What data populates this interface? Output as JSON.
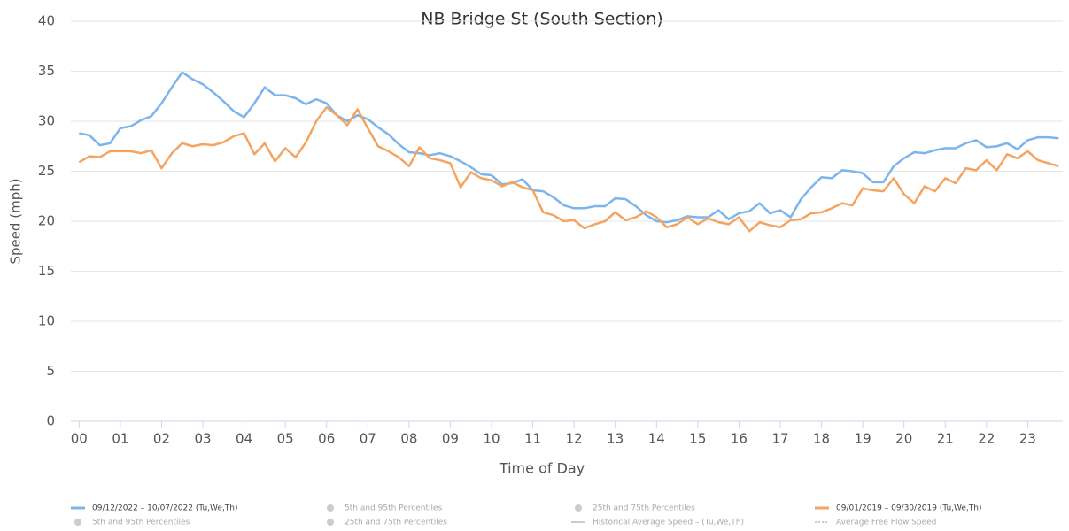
{
  "chart_data": {
    "type": "line",
    "title": "NB Bridge St (South Section)",
    "xlabel": "Time of Day",
    "ylabel": "Speed (mph)",
    "x": [
      0,
      0.25,
      0.5,
      0.75,
      1,
      1.25,
      1.5,
      1.75,
      2,
      2.25,
      2.5,
      2.75,
      3,
      3.25,
      3.5,
      3.75,
      4,
      4.25,
      4.5,
      4.75,
      5,
      5.25,
      5.5,
      5.75,
      6,
      6.25,
      6.5,
      6.75,
      7,
      7.25,
      7.5,
      7.75,
      8,
      8.25,
      8.5,
      8.75,
      9,
      9.25,
      9.5,
      9.75,
      10,
      10.25,
      10.5,
      10.75,
      11,
      11.25,
      11.5,
      11.75,
      12,
      12.25,
      12.5,
      12.75,
      13,
      13.25,
      13.5,
      13.75,
      14,
      14.25,
      14.5,
      14.75,
      15,
      15.25,
      15.5,
      15.75,
      16,
      16.25,
      16.5,
      16.75,
      17,
      17.25,
      17.5,
      17.75,
      18,
      18.25,
      18.5,
      18.75,
      19,
      19.25,
      19.5,
      19.75,
      20,
      20.25,
      20.5,
      20.75,
      21,
      21.25,
      21.5,
      21.75,
      22,
      22.25,
      22.5,
      22.75,
      23,
      23.25,
      23.5,
      23.75
    ],
    "series": [
      {
        "name": "09/12/2022 – 10/07/2022 (Tu,We,Th)",
        "color": "#7cb5ec",
        "values": [
          28.8,
          28.6,
          27.6,
          27.8,
          29.3,
          29.5,
          30.1,
          30.5,
          31.8,
          33.4,
          34.9,
          34.2,
          33.7,
          32.9,
          32.0,
          31.0,
          30.4,
          31.8,
          33.4,
          32.6,
          32.6,
          32.3,
          31.7,
          32.2,
          31.8,
          30.6,
          30.0,
          30.6,
          30.2,
          29.4,
          28.7,
          27.7,
          26.9,
          26.8,
          26.6,
          26.8,
          26.5,
          26.0,
          25.4,
          24.7,
          24.6,
          23.7,
          23.8,
          24.2,
          23.1,
          23.0,
          22.4,
          21.6,
          21.3,
          21.3,
          21.5,
          21.5,
          22.3,
          22.2,
          21.5,
          20.6,
          20.0,
          19.9,
          20.1,
          20.5,
          20.4,
          20.4,
          21.1,
          20.2,
          20.8,
          21.0,
          21.8,
          20.8,
          21.1,
          20.4,
          22.2,
          23.4,
          24.4,
          24.3,
          25.1,
          25.0,
          24.8,
          23.9,
          23.9,
          25.5,
          26.3,
          26.9,
          26.8,
          27.1,
          27.3,
          27.3,
          27.8,
          28.1,
          27.4,
          27.5,
          27.8,
          27.2,
          28.1,
          28.4,
          28.4,
          28.3
        ]
      },
      {
        "name": "09/01/2019 – 09/30/2019 (Tu,We,Th)",
        "color": "#f4a460",
        "values": [
          25.9,
          26.5,
          26.4,
          27.0,
          27.0,
          27.0,
          26.8,
          27.1,
          25.3,
          26.8,
          27.8,
          27.5,
          27.7,
          27.6,
          27.9,
          28.5,
          28.8,
          26.7,
          27.8,
          26.0,
          27.3,
          26.4,
          27.9,
          30.0,
          31.4,
          30.6,
          29.6,
          31.2,
          29.3,
          27.5,
          27.0,
          26.4,
          25.5,
          27.4,
          26.3,
          26.1,
          25.8,
          23.4,
          24.9,
          24.3,
          24.1,
          23.5,
          23.9,
          23.4,
          23.1,
          20.9,
          20.6,
          20.0,
          20.1,
          19.3,
          19.7,
          20.0,
          20.9,
          20.1,
          20.4,
          21.0,
          20.4,
          19.4,
          19.7,
          20.4,
          19.7,
          20.3,
          19.9,
          19.7,
          20.4,
          19.0,
          19.9,
          19.6,
          19.4,
          20.1,
          20.2,
          20.8,
          20.9,
          21.3,
          21.8,
          21.6,
          23.3,
          23.1,
          23.0,
          24.3,
          22.7,
          21.8,
          23.5,
          23.0,
          24.3,
          23.8,
          25.3,
          25.1,
          26.1,
          25.1,
          26.7,
          26.3,
          27.0,
          26.1,
          25.8,
          25.5
        ]
      }
    ],
    "legend_hidden": [
      {
        "name": "5th and 95th Percentiles",
        "symbol": "dot"
      },
      {
        "name": "25th and 75th Percentiles",
        "symbol": "dot"
      },
      {
        "name": "5th and 95th Percentiles",
        "symbol": "dot"
      },
      {
        "name": "25th and 75th Percentiles",
        "symbol": "dot"
      },
      {
        "name": "Historical Average Speed – (Tu,We,Th)",
        "symbol": "line"
      },
      {
        "name": "Average Free Flow Speed",
        "symbol": "dotted"
      }
    ],
    "xlim": [
      -0.2,
      23.85
    ],
    "ylim": [
      0,
      40
    ],
    "yticks": [
      0,
      5,
      10,
      15,
      20,
      25,
      30,
      35,
      40
    ],
    "xticks": [
      {
        "value": 0,
        "label": "00"
      },
      {
        "value": 1,
        "label": "01"
      },
      {
        "value": 2,
        "label": "02"
      },
      {
        "value": 3,
        "label": "03"
      },
      {
        "value": 4,
        "label": "04"
      },
      {
        "value": 5,
        "label": "05"
      },
      {
        "value": 6,
        "label": "06"
      },
      {
        "value": 7,
        "label": "07"
      },
      {
        "value": 8,
        "label": "08"
      },
      {
        "value": 9,
        "label": "09"
      },
      {
        "value": 10,
        "label": "10"
      },
      {
        "value": 11,
        "label": "11"
      },
      {
        "value": 12,
        "label": "12"
      },
      {
        "value": 13,
        "label": "13"
      },
      {
        "value": 14,
        "label": "14"
      },
      {
        "value": 15,
        "label": "15"
      },
      {
        "value": 16,
        "label": "16"
      },
      {
        "value": 17,
        "label": "17"
      },
      {
        "value": 18,
        "label": "18"
      },
      {
        "value": 19,
        "label": "19"
      },
      {
        "value": 20,
        "label": "20"
      },
      {
        "value": 21,
        "label": "21"
      },
      {
        "value": 22,
        "label": "22"
      },
      {
        "value": 23,
        "label": "23"
      }
    ],
    "grid": true
  }
}
